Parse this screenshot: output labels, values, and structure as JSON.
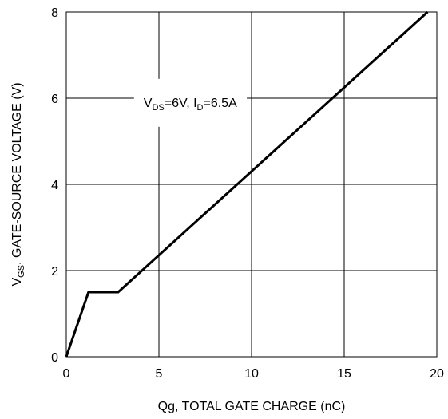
{
  "chart_data": {
    "type": "line",
    "title": "",
    "xlabel": "Qg, TOTAL GATE CHARGE (nC)",
    "ylabel": {
      "prefix": "V",
      "sub": "GS",
      "rest": ", GATE-SOURCE VOLTAGE (V)"
    },
    "xlim": [
      0,
      20
    ],
    "ylim": [
      0,
      8
    ],
    "xticks": [
      0,
      5,
      10,
      15,
      20
    ],
    "yticks": [
      0,
      2,
      4,
      6,
      8
    ],
    "x_tick_labels": [
      "0",
      "5",
      "10",
      "15",
      "20"
    ],
    "y_tick_labels": [
      "0",
      "2",
      "4",
      "6",
      "8"
    ],
    "grid": true,
    "series": [
      {
        "x": [
          0,
          1.2,
          2.8,
          19.5
        ],
        "y": [
          0,
          1.5,
          1.5,
          8
        ]
      }
    ],
    "annotation": {
      "parts": [
        {
          "text": "V",
          "sub": false
        },
        {
          "text": "DS",
          "sub": true
        },
        {
          "text": "=6V, I",
          "sub": false
        },
        {
          "text": "D",
          "sub": true
        },
        {
          "text": "=6.5A",
          "sub": false
        }
      ],
      "x": 4,
      "y": 5.8
    },
    "colors": {
      "line": "#000000",
      "grid": "#000000",
      "background": "#ffffff"
    }
  }
}
